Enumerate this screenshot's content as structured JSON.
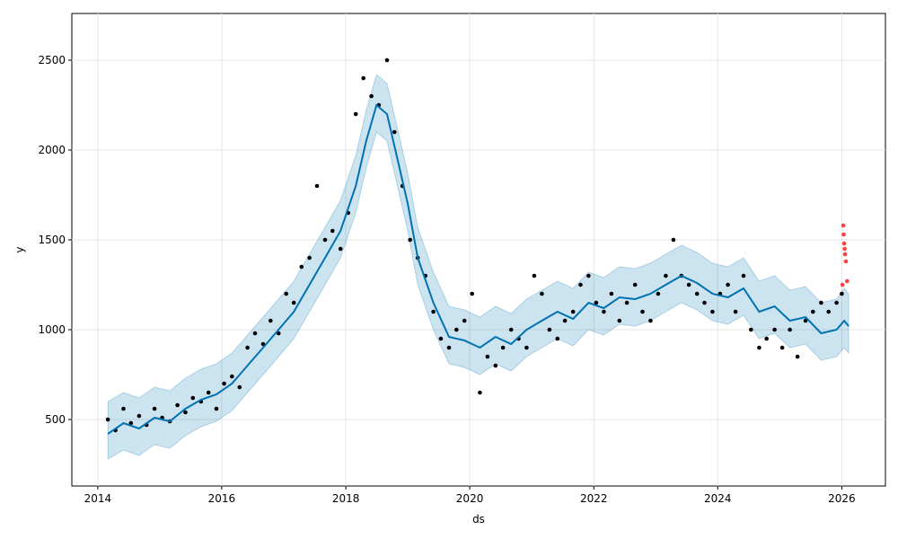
{
  "chart_data": {
    "type": "line",
    "title": "",
    "xlabel": "ds",
    "ylabel": "y",
    "xlim": [
      "2013-08-01",
      "2026-09-15"
    ],
    "ylim": [
      130,
      2760
    ],
    "x_ticks": [
      "2014",
      "2016",
      "2018",
      "2020",
      "2022",
      "2024",
      "2026"
    ],
    "y_ticks": [
      500,
      1000,
      1500,
      2000,
      2500
    ],
    "grid": true,
    "legend": "none",
    "colors": {
      "forecast_line": "#0072B2",
      "uncertainty_band": "#0072B2",
      "observed_points": "#000000",
      "recent_points": "#ff0000"
    },
    "forecast": {
      "x": [
        "2014-03-01",
        "2014-06-01",
        "2014-09-01",
        "2014-12-01",
        "2015-03-01",
        "2015-06-01",
        "2015-09-01",
        "2015-12-01",
        "2016-03-01",
        "2016-06-01",
        "2016-09-01",
        "2016-12-01",
        "2017-03-01",
        "2017-06-01",
        "2017-09-01",
        "2017-12-01",
        "2018-03-01",
        "2018-05-01",
        "2018-07-01",
        "2018-09-01",
        "2018-11-01",
        "2019-01-01",
        "2019-03-01",
        "2019-06-01",
        "2019-09-01",
        "2019-12-01",
        "2020-03-01",
        "2020-06-01",
        "2020-09-01",
        "2020-12-01",
        "2021-03-01",
        "2021-06-01",
        "2021-09-01",
        "2021-12-01",
        "2022-03-01",
        "2022-06-01",
        "2022-09-01",
        "2022-12-01",
        "2023-03-01",
        "2023-06-01",
        "2023-09-01",
        "2023-12-01",
        "2024-03-01",
        "2024-06-01",
        "2024-09-01",
        "2024-12-01",
        "2025-03-01",
        "2025-06-01",
        "2025-09-01",
        "2025-12-01",
        "2026-01-15",
        "2026-02-10"
      ],
      "yhat": [
        420,
        480,
        450,
        510,
        490,
        560,
        610,
        640,
        700,
        800,
        900,
        1000,
        1100,
        1250,
        1400,
        1550,
        1800,
        2050,
        2250,
        2200,
        1950,
        1700,
        1400,
        1150,
        960,
        940,
        900,
        960,
        920,
        1000,
        1050,
        1100,
        1060,
        1150,
        1120,
        1180,
        1170,
        1200,
        1250,
        1300,
        1260,
        1200,
        1180,
        1230,
        1100,
        1130,
        1050,
        1070,
        980,
        1000,
        1050,
        1020
      ],
      "yhat_lower": [
        280,
        330,
        300,
        360,
        340,
        410,
        460,
        490,
        550,
        650,
        750,
        850,
        950,
        1100,
        1250,
        1400,
        1650,
        1900,
        2100,
        2050,
        1800,
        1550,
        1250,
        1000,
        810,
        790,
        750,
        810,
        770,
        850,
        900,
        950,
        910,
        1000,
        970,
        1030,
        1020,
        1050,
        1100,
        1150,
        1110,
        1050,
        1030,
        1080,
        950,
        980,
        900,
        920,
        830,
        850,
        900,
        870
      ],
      "yhat_upper": [
        600,
        650,
        620,
        680,
        660,
        730,
        780,
        810,
        870,
        970,
        1070,
        1170,
        1270,
        1420,
        1570,
        1720,
        1970,
        2220,
        2420,
        2370,
        2120,
        1870,
        1570,
        1320,
        1130,
        1110,
        1070,
        1130,
        1090,
        1170,
        1220,
        1270,
        1230,
        1320,
        1290,
        1350,
        1340,
        1370,
        1420,
        1470,
        1430,
        1370,
        1350,
        1400,
        1270,
        1300,
        1220,
        1240,
        1150,
        1170,
        1230,
        1200
      ]
    },
    "observed": {
      "x": [
        "2014-03-01",
        "2014-04-15",
        "2014-06-01",
        "2014-07-15",
        "2014-09-01",
        "2014-10-15",
        "2014-12-01",
        "2015-01-15",
        "2015-03-01",
        "2015-04-15",
        "2015-06-01",
        "2015-07-15",
        "2015-09-01",
        "2015-10-15",
        "2015-12-01",
        "2016-01-15",
        "2016-03-01",
        "2016-04-15",
        "2016-06-01",
        "2016-07-15",
        "2016-09-01",
        "2016-10-15",
        "2016-12-01",
        "2017-01-15",
        "2017-03-01",
        "2017-04-15",
        "2017-06-01",
        "2017-07-15",
        "2017-09-01",
        "2017-10-15",
        "2017-12-01",
        "2018-01-15",
        "2018-03-01",
        "2018-04-15",
        "2018-06-01",
        "2018-07-15",
        "2018-09-01",
        "2018-10-15",
        "2018-12-01",
        "2019-01-15",
        "2019-03-01",
        "2019-04-15",
        "2019-06-01",
        "2019-07-15",
        "2019-09-01",
        "2019-10-15",
        "2019-12-01",
        "2020-01-15",
        "2020-03-01",
        "2020-04-15",
        "2020-06-01",
        "2020-07-15",
        "2020-09-01",
        "2020-10-15",
        "2020-12-01",
        "2021-01-15",
        "2021-03-01",
        "2021-04-15",
        "2021-06-01",
        "2021-07-15",
        "2021-09-01",
        "2021-10-15",
        "2021-12-01",
        "2022-01-15",
        "2022-03-01",
        "2022-04-15",
        "2022-06-01",
        "2022-07-15",
        "2022-09-01",
        "2022-10-15",
        "2022-12-01",
        "2023-01-15",
        "2023-03-01",
        "2023-04-15",
        "2023-06-01",
        "2023-07-15",
        "2023-09-01",
        "2023-10-15",
        "2023-12-01",
        "2024-01-15",
        "2024-03-01",
        "2024-04-15",
        "2024-06-01",
        "2024-07-15",
        "2024-09-01",
        "2024-10-15",
        "2024-12-01",
        "2025-01-15",
        "2025-03-01",
        "2025-04-15",
        "2025-06-01",
        "2025-07-15",
        "2025-09-01",
        "2025-10-15",
        "2025-12-01",
        "2026-01-01"
      ],
      "y": [
        500,
        440,
        560,
        480,
        520,
        470,
        560,
        510,
        490,
        580,
        540,
        620,
        600,
        650,
        560,
        700,
        740,
        680,
        900,
        980,
        920,
        1050,
        980,
        1200,
        1150,
        1350,
        1400,
        1800,
        1500,
        1550,
        1450,
        1650,
        2200,
        2400,
        2300,
        2250,
        2500,
        2100,
        1800,
        1500,
        1400,
        1300,
        1100,
        950,
        900,
        1000,
        1050,
        1200,
        650,
        850,
        800,
        900,
        1000,
        950,
        900,
        1300,
        1200,
        1000,
        950,
        1050,
        1100,
        1250,
        1300,
        1150,
        1100,
        1200,
        1050,
        1150,
        1250,
        1100,
        1050,
        1200,
        1300,
        1500,
        1300,
        1250,
        1200,
        1150,
        1100,
        1200,
        1250,
        1100,
        1300,
        1000,
        900,
        950,
        1000,
        900,
        1000,
        850,
        1050,
        1100,
        1150,
        1100,
        1150,
        1200
      ],
      "recent_x": [
        "2026-01-05",
        "2026-01-10",
        "2026-01-12",
        "2026-01-15",
        "2026-01-18",
        "2026-01-20",
        "2026-01-25",
        "2026-02-01"
      ],
      "recent_y": [
        1250,
        1580,
        1530,
        1480,
        1450,
        1420,
        1380,
        1270
      ]
    }
  }
}
